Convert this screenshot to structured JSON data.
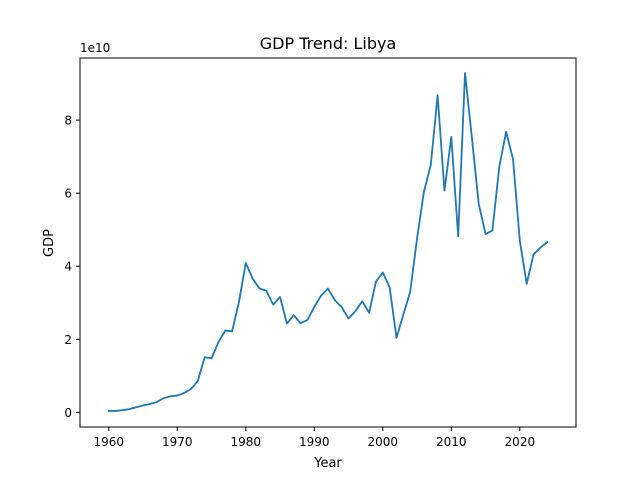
{
  "chart_data": {
    "type": "line",
    "title": "GDP Trend: Libya",
    "xlabel": "Year",
    "ylabel": "GDP",
    "y_offset_label": "1e10",
    "xlim": [
      1955.8,
      2028.2
    ],
    "ylim": [
      -0.4,
      9.7
    ],
    "y_unit_multiplier": 10000000000,
    "grid": false,
    "line_color": "#1f77b4",
    "x_ticks": [
      1960,
      1970,
      1980,
      1990,
      2000,
      2010,
      2020
    ],
    "y_ticks": [
      0,
      2,
      4,
      6,
      8
    ],
    "series": [
      {
        "x": [
          1960,
          1961,
          1962,
          1963,
          1964,
          1965,
          1966,
          1967,
          1968,
          1969,
          1970,
          1971,
          1972,
          1973,
          1974,
          1975,
          1976,
          1977,
          1978,
          1979,
          1980,
          1981,
          1982,
          1983,
          1984,
          1985,
          1986,
          1987,
          1988,
          1989,
          1990,
          1991,
          1992,
          1993,
          1994,
          1995,
          1996,
          1997,
          1998,
          1999,
          2000,
          2001,
          2002,
          2003,
          2004,
          2005,
          2006,
          2007,
          2008,
          2009,
          2010,
          2011,
          2012,
          2013,
          2014,
          2015,
          2016,
          2017,
          2018,
          2019,
          2020,
          2021,
          2022,
          2023,
          2024
        ],
        "values": [
          0.04,
          0.04,
          0.06,
          0.09,
          0.14,
          0.19,
          0.23,
          0.28,
          0.39,
          0.44,
          0.46,
          0.53,
          0.64,
          0.86,
          1.51,
          1.48,
          1.92,
          2.24,
          2.22,
          3.02,
          4.09,
          3.66,
          3.39,
          3.33,
          2.95,
          3.16,
          2.43,
          2.66,
          2.44,
          2.53,
          2.89,
          3.2,
          3.39,
          3.07,
          2.88,
          2.57,
          2.77,
          3.04,
          2.73,
          3.58,
          3.83,
          3.42,
          2.04,
          2.68,
          3.3,
          4.76,
          6.04,
          6.77,
          8.68,
          6.07,
          7.54,
          4.82,
          9.29,
          7.52,
          5.71,
          4.88,
          4.98,
          6.72,
          7.68,
          6.94,
          4.7,
          3.52,
          4.32,
          4.51,
          4.66
        ]
      }
    ]
  }
}
